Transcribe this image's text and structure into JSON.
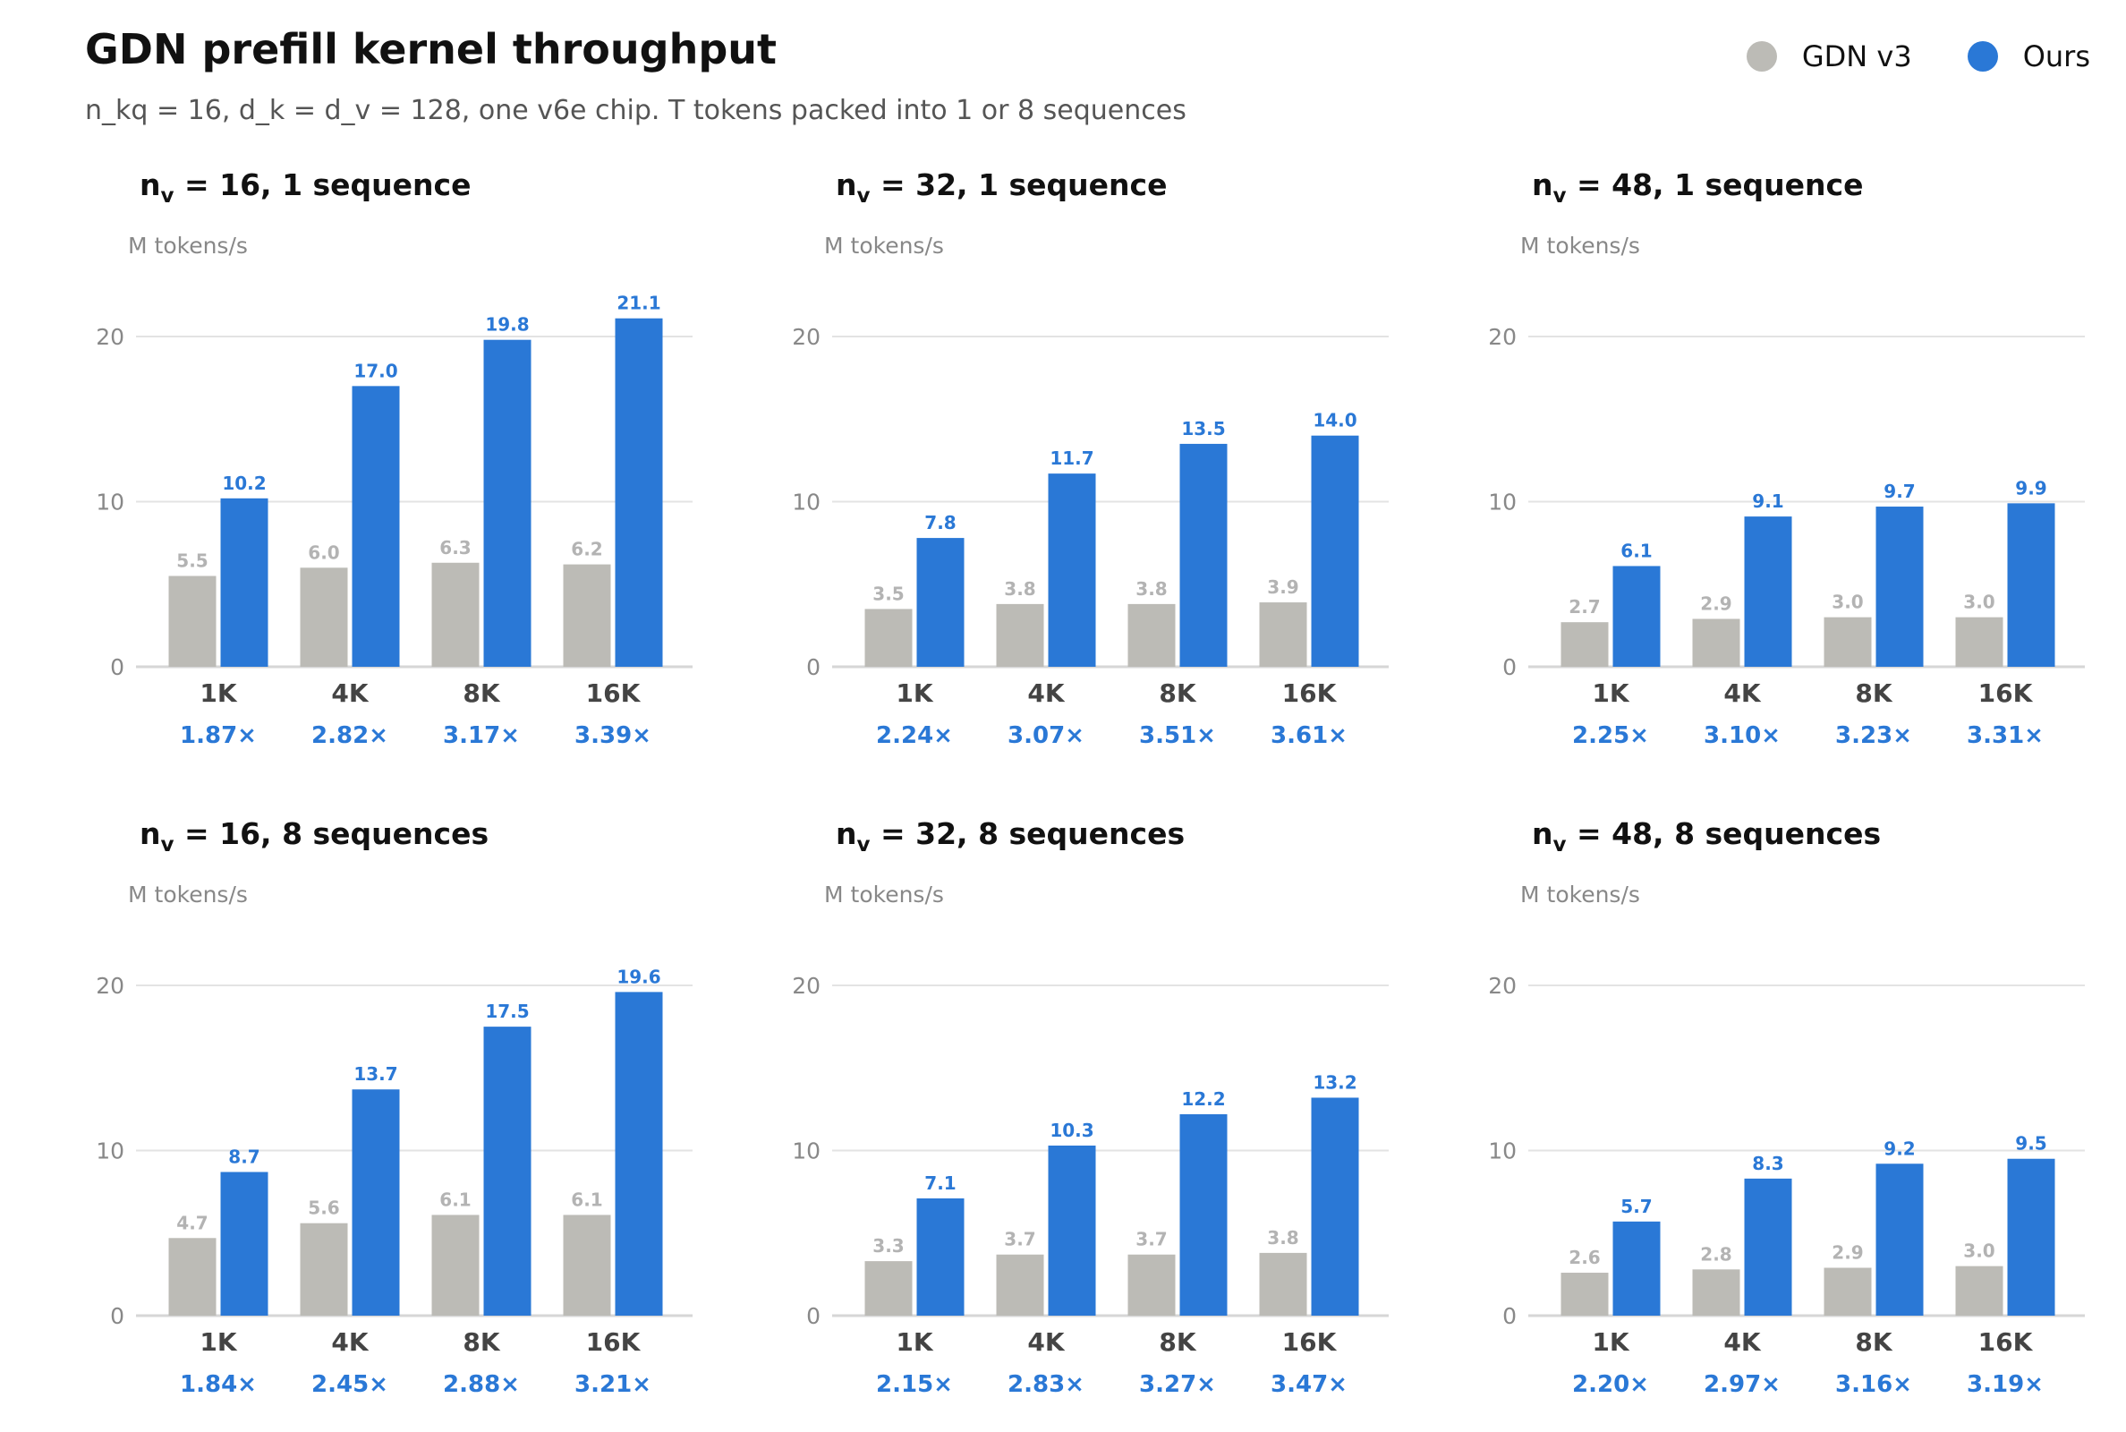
{
  "title": "GDN prefill kernel throughput",
  "subtitle": "n_kq = 16, d_k = d_v = 128, one v6e chip. T tokens packed into 1 or 8 sequences",
  "colors": {
    "baseline": "#bcbbb6",
    "ours": "#2a78d6",
    "speedup": "#2a78d6",
    "baseline_label": "#b3b3b3"
  },
  "legend": [
    {
      "name": "GDN v3",
      "color": "#bcbbb6"
    },
    {
      "name": "Ours",
      "color": "#2a78d6"
    }
  ],
  "chart_data": [
    {
      "type": "bar",
      "title_pre": "n",
      "title_sub": "v",
      "title_post": " = 16, 1 sequence",
      "ylabel": "M tokens/s",
      "categories": [
        "1K",
        "4K",
        "8K",
        "16K"
      ],
      "ylim": [
        0,
        25
      ],
      "yticks": [
        0,
        10,
        20
      ],
      "series": [
        {
          "name": "GDN v3",
          "values": [
            5.5,
            6.0,
            6.3,
            6.2
          ]
        },
        {
          "name": "Ours",
          "values": [
            10.2,
            17.0,
            19.8,
            21.1
          ]
        }
      ],
      "speedups": [
        "1.87×",
        "2.82×",
        "3.17×",
        "3.39×"
      ]
    },
    {
      "type": "bar",
      "title_pre": "n",
      "title_sub": "v",
      "title_post": " = 32, 1 sequence",
      "ylabel": "M tokens/s",
      "categories": [
        "1K",
        "4K",
        "8K",
        "16K"
      ],
      "ylim": [
        0,
        25
      ],
      "yticks": [
        0,
        10,
        20
      ],
      "series": [
        {
          "name": "GDN v3",
          "values": [
            3.5,
            3.8,
            3.8,
            3.9
          ]
        },
        {
          "name": "Ours",
          "values": [
            7.8,
            11.7,
            13.5,
            14.0
          ]
        }
      ],
      "speedups": [
        "2.24×",
        "3.07×",
        "3.51×",
        "3.61×"
      ]
    },
    {
      "type": "bar",
      "title_pre": "n",
      "title_sub": "v",
      "title_post": " = 48, 1 sequence",
      "ylabel": "M tokens/s",
      "categories": [
        "1K",
        "4K",
        "8K",
        "16K"
      ],
      "ylim": [
        0,
        25
      ],
      "yticks": [
        0,
        10,
        20
      ],
      "series": [
        {
          "name": "GDN v3",
          "values": [
            2.7,
            2.9,
            3.0,
            3.0
          ]
        },
        {
          "name": "Ours",
          "values": [
            6.1,
            9.1,
            9.7,
            9.9
          ]
        }
      ],
      "speedups": [
        "2.25×",
        "3.10×",
        "3.23×",
        "3.31×"
      ]
    },
    {
      "type": "bar",
      "title_pre": "n",
      "title_sub": "v",
      "title_post": " = 16, 8 sequences",
      "ylabel": "M tokens/s",
      "categories": [
        "1K",
        "4K",
        "8K",
        "16K"
      ],
      "ylim": [
        0,
        25
      ],
      "yticks": [
        0,
        10,
        20
      ],
      "series": [
        {
          "name": "GDN v3",
          "values": [
            4.7,
            5.6,
            6.1,
            6.1
          ]
        },
        {
          "name": "Ours",
          "values": [
            8.7,
            13.7,
            17.5,
            19.6
          ]
        }
      ],
      "speedups": [
        "1.84×",
        "2.45×",
        "2.88×",
        "3.21×"
      ]
    },
    {
      "type": "bar",
      "title_pre": "n",
      "title_sub": "v",
      "title_post": " = 32, 8 sequences",
      "ylabel": "M tokens/s",
      "categories": [
        "1K",
        "4K",
        "8K",
        "16K"
      ],
      "ylim": [
        0,
        25
      ],
      "yticks": [
        0,
        10,
        20
      ],
      "series": [
        {
          "name": "GDN v3",
          "values": [
            3.3,
            3.7,
            3.7,
            3.8
          ]
        },
        {
          "name": "Ours",
          "values": [
            7.1,
            10.3,
            12.2,
            13.2
          ]
        }
      ],
      "speedups": [
        "2.15×",
        "2.83×",
        "3.27×",
        "3.47×"
      ]
    },
    {
      "type": "bar",
      "title_pre": "n",
      "title_sub": "v",
      "title_post": " = 48, 8 sequences",
      "ylabel": "M tokens/s",
      "categories": [
        "1K",
        "4K",
        "8K",
        "16K"
      ],
      "ylim": [
        0,
        25
      ],
      "yticks": [
        0,
        10,
        20
      ],
      "series": [
        {
          "name": "GDN v3",
          "values": [
            2.6,
            2.8,
            2.9,
            3.0
          ]
        },
        {
          "name": "Ours",
          "values": [
            5.7,
            8.3,
            9.2,
            9.5
          ]
        }
      ],
      "speedups": [
        "2.20×",
        "2.97×",
        "3.16×",
        "3.19×"
      ]
    }
  ]
}
